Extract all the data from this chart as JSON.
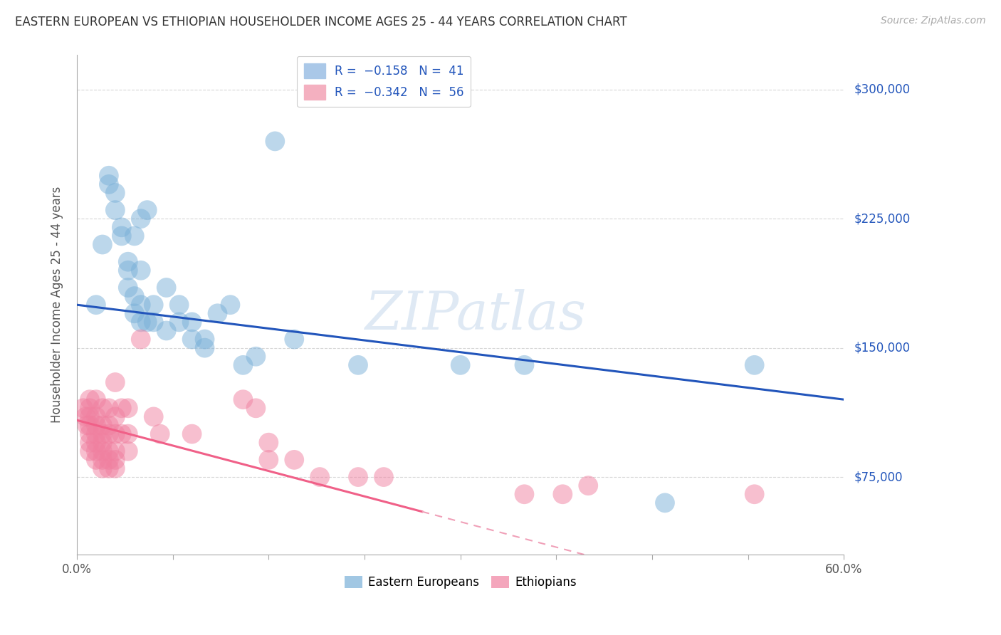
{
  "title": "EASTERN EUROPEAN VS ETHIOPIAN HOUSEHOLDER INCOME AGES 25 - 44 YEARS CORRELATION CHART",
  "source": "Source: ZipAtlas.com",
  "ylabel": "Householder Income Ages 25 - 44 years",
  "xlim": [
    0.0,
    0.6
  ],
  "ylim": [
    30000,
    320000
  ],
  "yticks": [
    75000,
    150000,
    225000,
    300000
  ],
  "ytick_labels": [
    "$75,000",
    "$150,000",
    "$225,000",
    "$300,000"
  ],
  "xtick_labels_show": {
    "0.0": "0.0%",
    "0.60": "60.0%"
  },
  "watermark": "ZIPatlas",
  "blue_color": "#7ab0d8",
  "pink_color": "#f080a0",
  "blue_line_color": "#2255bb",
  "pink_line_color": "#f06088",
  "pink_dash_color": "#f0a0b8",
  "blue_scatter": [
    [
      0.015,
      175000
    ],
    [
      0.02,
      210000
    ],
    [
      0.025,
      250000
    ],
    [
      0.025,
      245000
    ],
    [
      0.03,
      240000
    ],
    [
      0.03,
      230000
    ],
    [
      0.035,
      220000
    ],
    [
      0.035,
      215000
    ],
    [
      0.04,
      200000
    ],
    [
      0.04,
      195000
    ],
    [
      0.04,
      185000
    ],
    [
      0.045,
      215000
    ],
    [
      0.045,
      180000
    ],
    [
      0.045,
      170000
    ],
    [
      0.05,
      225000
    ],
    [
      0.05,
      195000
    ],
    [
      0.05,
      175000
    ],
    [
      0.05,
      165000
    ],
    [
      0.055,
      230000
    ],
    [
      0.055,
      165000
    ],
    [
      0.06,
      175000
    ],
    [
      0.06,
      165000
    ],
    [
      0.07,
      185000
    ],
    [
      0.07,
      160000
    ],
    [
      0.08,
      175000
    ],
    [
      0.08,
      165000
    ],
    [
      0.09,
      165000
    ],
    [
      0.09,
      155000
    ],
    [
      0.1,
      155000
    ],
    [
      0.1,
      150000
    ],
    [
      0.11,
      170000
    ],
    [
      0.12,
      175000
    ],
    [
      0.13,
      140000
    ],
    [
      0.14,
      145000
    ],
    [
      0.155,
      270000
    ],
    [
      0.17,
      155000
    ],
    [
      0.22,
      140000
    ],
    [
      0.3,
      140000
    ],
    [
      0.35,
      140000
    ],
    [
      0.46,
      60000
    ],
    [
      0.53,
      140000
    ]
  ],
  "pink_scatter": [
    [
      0.005,
      115000
    ],
    [
      0.007,
      110000
    ],
    [
      0.008,
      105000
    ],
    [
      0.01,
      120000
    ],
    [
      0.01,
      115000
    ],
    [
      0.01,
      110000
    ],
    [
      0.01,
      105000
    ],
    [
      0.01,
      100000
    ],
    [
      0.01,
      95000
    ],
    [
      0.01,
      90000
    ],
    [
      0.015,
      120000
    ],
    [
      0.015,
      110000
    ],
    [
      0.015,
      105000
    ],
    [
      0.015,
      100000
    ],
    [
      0.015,
      95000
    ],
    [
      0.015,
      90000
    ],
    [
      0.015,
      85000
    ],
    [
      0.02,
      115000
    ],
    [
      0.02,
      105000
    ],
    [
      0.02,
      100000
    ],
    [
      0.02,
      95000
    ],
    [
      0.02,
      90000
    ],
    [
      0.02,
      85000
    ],
    [
      0.02,
      80000
    ],
    [
      0.025,
      115000
    ],
    [
      0.025,
      105000
    ],
    [
      0.025,
      100000
    ],
    [
      0.025,
      90000
    ],
    [
      0.025,
      85000
    ],
    [
      0.025,
      80000
    ],
    [
      0.03,
      130000
    ],
    [
      0.03,
      110000
    ],
    [
      0.03,
      100000
    ],
    [
      0.03,
      90000
    ],
    [
      0.03,
      85000
    ],
    [
      0.03,
      80000
    ],
    [
      0.035,
      115000
    ],
    [
      0.035,
      100000
    ],
    [
      0.04,
      115000
    ],
    [
      0.04,
      100000
    ],
    [
      0.04,
      90000
    ],
    [
      0.05,
      155000
    ],
    [
      0.06,
      110000
    ],
    [
      0.065,
      100000
    ],
    [
      0.09,
      100000
    ],
    [
      0.13,
      120000
    ],
    [
      0.14,
      115000
    ],
    [
      0.15,
      95000
    ],
    [
      0.15,
      85000
    ],
    [
      0.17,
      85000
    ],
    [
      0.19,
      75000
    ],
    [
      0.22,
      75000
    ],
    [
      0.24,
      75000
    ],
    [
      0.35,
      65000
    ],
    [
      0.38,
      65000
    ],
    [
      0.4,
      70000
    ],
    [
      0.53,
      65000
    ]
  ],
  "background_color": "#ffffff",
  "grid_color": "#cccccc",
  "axis_color": "#aaaaaa",
  "title_color": "#333333",
  "right_label_color": "#2255bb"
}
